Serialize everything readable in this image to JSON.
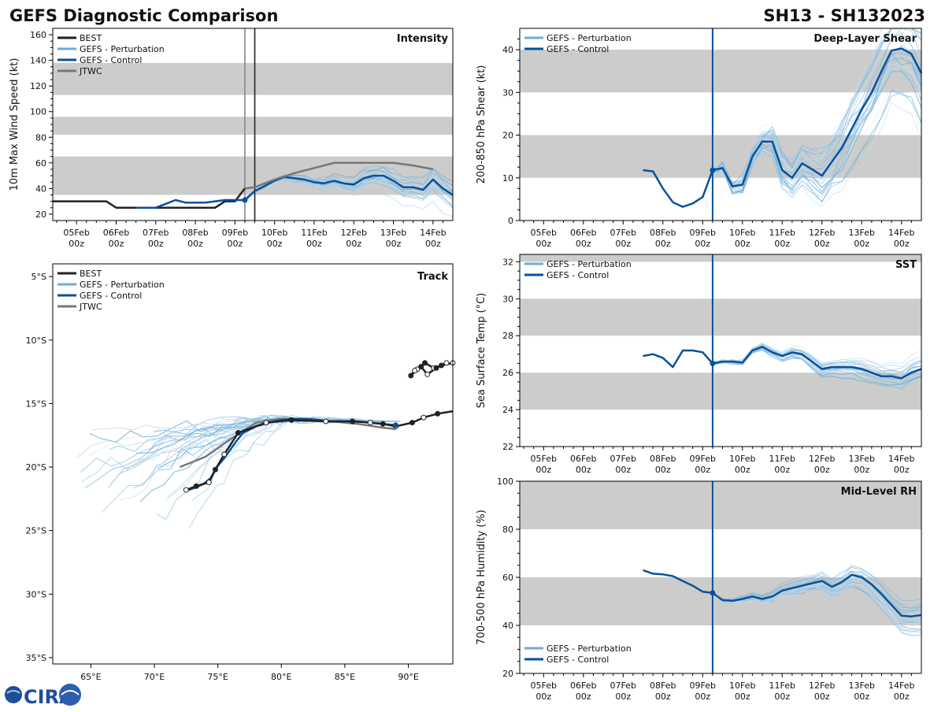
{
  "header": {
    "title": "GEFS Diagnostic Comparison",
    "storm_id": "SH13 - SH132023"
  },
  "colors": {
    "best": "#222222",
    "perturbation": "#6baed6",
    "control": "#08519c",
    "jtwc": "#777777",
    "band": "#cccccc"
  },
  "time_axis": {
    "labels": [
      "05Feb",
      "06Feb",
      "07Feb",
      "08Feb",
      "09Feb",
      "10Feb",
      "11Feb",
      "12Feb",
      "13Feb",
      "14Feb"
    ],
    "sub": "00z"
  },
  "chart_data": [
    {
      "id": "intensity",
      "type": "line",
      "title": "Intensity",
      "ylabel": "10m Max Wind Speed (kt)",
      "ylim": [
        15,
        165
      ],
      "yticks": [
        20,
        40,
        60,
        80,
        100,
        120,
        140,
        160
      ],
      "xlim": [
        -0.6,
        9.5
      ],
      "bands": [
        [
          35,
          65
        ],
        [
          82,
          96
        ],
        [
          113,
          138
        ]
      ],
      "vlines": [
        {
          "x": 4.25,
          "color": "#888888"
        },
        {
          "x": 4.5,
          "color": "#222222"
        }
      ],
      "legend": [
        "BEST",
        "GEFS - Perturbation",
        "GEFS - Control",
        "JTWC"
      ],
      "series": [
        {
          "name": "BEST",
          "x": [
            -0.6,
            0,
            0.25,
            0.5,
            0.75,
            1,
            1.25,
            1.5,
            1.75,
            2,
            2.25,
            2.5,
            2.75,
            3,
            3.25,
            3.5,
            3.75,
            4,
            4.25
          ],
          "values": [
            30,
            30,
            30,
            30,
            30,
            25,
            25,
            25,
            25,
            25,
            25,
            25,
            25,
            25,
            25,
            25,
            30,
            30,
            40
          ]
        },
        {
          "name": "GEFS - Control",
          "x": [
            1.5,
            1.75,
            2,
            2.25,
            2.5,
            2.75,
            3,
            3.25,
            3.5,
            3.75,
            4,
            4.25,
            4.5,
            4.75,
            5,
            5.25,
            5.5,
            5.75,
            6,
            6.25,
            6.5,
            6.75,
            7,
            7.25,
            7.5,
            7.75,
            8,
            8.25,
            8.5,
            8.75,
            9,
            9.25,
            9.5
          ],
          "values": [
            25,
            25,
            25,
            28,
            31,
            29,
            29,
            29,
            30,
            31,
            31,
            31,
            38,
            42,
            46,
            49,
            48,
            47,
            45,
            44,
            46,
            44,
            43,
            48,
            50,
            50,
            46,
            41,
            41,
            39,
            47,
            40,
            35
          ]
        },
        {
          "name": "JTWC",
          "x": [
            4.25,
            4.5,
            5,
            5.5,
            6,
            6.5,
            7,
            7.5,
            8,
            8.5,
            9
          ],
          "values": [
            40,
            41,
            47,
            52,
            56,
            60,
            60,
            60,
            60,
            58,
            55
          ]
        }
      ]
    },
    {
      "id": "shear",
      "type": "line",
      "title": "Deep-Layer Shear",
      "ylabel": "200-850 hPa Shear (kt)",
      "ylim": [
        0,
        45
      ],
      "yticks": [
        0,
        10,
        20,
        30,
        40
      ],
      "xlim": [
        -0.6,
        9.5
      ],
      "bands": [
        [
          10,
          20
        ],
        [
          30,
          40
        ]
      ],
      "vlines": [
        {
          "x": 4.25,
          "color": "#08519c"
        }
      ],
      "legend": [
        "GEFS - Perturbation",
        "GEFS - Control"
      ],
      "series": [
        {
          "name": "GEFS - Control",
          "x": [
            2.5,
            2.75,
            3,
            3.25,
            3.5,
            3.75,
            4,
            4.25,
            4.5,
            4.75,
            5,
            5.25,
            5.5,
            5.75,
            6,
            6.25,
            6.5,
            6.75,
            7,
            7.25,
            7.5,
            7.75,
            8,
            8.25,
            8.5,
            8.75,
            9,
            9.25,
            9.5
          ],
          "values": [
            11.8,
            11.5,
            7.5,
            4.3,
            3.2,
            4,
            5.5,
            11.8,
            12.3,
            8,
            8.4,
            15,
            18.5,
            18.5,
            11.8,
            10,
            13.4,
            12,
            10.5,
            13.8,
            17,
            21.5,
            26,
            30,
            35,
            39.8,
            40.3,
            39,
            34.5
          ]
        }
      ]
    },
    {
      "id": "track",
      "type": "line",
      "title": "Track",
      "xlim": [
        62,
        93.5
      ],
      "ylim": [
        -35.5,
        -4
      ],
      "xticks": [
        65,
        70,
        75,
        80,
        85,
        90
      ],
      "xtick_labels": [
        "65°E",
        "70°E",
        "75°E",
        "80°E",
        "85°E",
        "90°E"
      ],
      "yticks": [
        -5,
        -10,
        -15,
        -20,
        -25,
        -30,
        -35
      ],
      "ytick_labels": [
        "5°S",
        "10°S",
        "15°S",
        "20°S",
        "25°S",
        "30°S",
        "35°S"
      ],
      "legend": [
        "BEST",
        "GEFS - Perturbation",
        "GEFS - Control",
        "JTWC"
      ],
      "series": [
        {
          "name": "BEST",
          "lon": [
            93.5,
            92.3,
            91.2,
            90.3,
            89,
            88,
            87,
            85.6,
            83.5,
            80.8,
            78.8,
            76.6,
            75.5,
            74.8,
            74.3,
            73.3,
            72.5
          ],
          "lat": [
            -15.6,
            -15.8,
            -16.1,
            -16.5,
            -16.8,
            -16.6,
            -16.5,
            -16.4,
            -16.4,
            -16.3,
            -16.5,
            -17.3,
            -19,
            -20.2,
            -21.2,
            -21.5,
            -21.8
          ]
        },
        {
          "name": "BEST-loop",
          "lon": [
            93.5,
            92.6,
            92,
            91.3,
            90.7,
            90.2,
            90.5,
            91,
            91.5,
            92.2,
            93
          ],
          "lat": [
            -11.8,
            -12,
            -12.2,
            -11.8,
            -12.3,
            -12.8,
            -12.4,
            -12.1,
            -12.7,
            -12.2,
            -11.8
          ]
        },
        {
          "name": "GEFS - Control",
          "lon": [
            89,
            88,
            87,
            86,
            85,
            84,
            83,
            82,
            81,
            80,
            79,
            78,
            77,
            76.5,
            76,
            75.5,
            75,
            74.7,
            74.4,
            73.9,
            73.3,
            72.7
          ],
          "lat": [
            -16.7,
            -16.6,
            -16.5,
            -16.4,
            -16.4,
            -16.4,
            -16.3,
            -16.2,
            -16.2,
            -16.3,
            -16.5,
            -16.8,
            -17.3,
            -17.9,
            -18.6,
            -19.3,
            -19.9,
            -20.4,
            -20.9,
            -21.3,
            -21.6,
            -21.8
          ]
        },
        {
          "name": "JTWC",
          "lon": [
            89,
            88,
            86,
            84,
            82,
            80,
            78,
            76,
            74,
            72
          ],
          "lat": [
            -17,
            -16.9,
            -16.6,
            -16.4,
            -16.2,
            -16.2,
            -16.5,
            -17.8,
            -19.2,
            -20
          ]
        }
      ]
    },
    {
      "id": "sst",
      "type": "line",
      "title": "SST",
      "ylabel": "Sea Surface Temp (°C)",
      "ylim": [
        22,
        32.4
      ],
      "yticks": [
        22,
        24,
        26,
        28,
        30,
        32
      ],
      "xlim": [
        -0.6,
        9.5
      ],
      "bands": [
        [
          24,
          26
        ],
        [
          28,
          30
        ],
        [
          32,
          34
        ]
      ],
      "vlines": [
        {
          "x": 4.25,
          "color": "#08519c"
        }
      ],
      "legend": [
        "GEFS - Perturbation",
        "GEFS - Control"
      ],
      "series": [
        {
          "name": "GEFS - Control",
          "x": [
            2.5,
            2.75,
            3,
            3.25,
            3.5,
            3.75,
            4,
            4.25,
            4.5,
            4.75,
            5,
            5.25,
            5.5,
            5.75,
            6,
            6.25,
            6.5,
            6.75,
            7,
            7.25,
            7.5,
            7.75,
            8,
            8.25,
            8.5,
            8.75,
            9,
            9.25,
            9.5
          ],
          "values": [
            26.9,
            27,
            26.8,
            26.3,
            27.2,
            27.2,
            27.1,
            26.5,
            26.6,
            26.6,
            26.55,
            27.2,
            27.4,
            27.1,
            26.9,
            27.1,
            27,
            26.6,
            26.2,
            26.3,
            26.3,
            26.3,
            26.2,
            26,
            25.8,
            25.8,
            25.7,
            26,
            26.2
          ]
        }
      ]
    },
    {
      "id": "rh",
      "type": "line",
      "title": "Mid-Level RH",
      "ylabel": "700-500 hPa Humidity (%)",
      "ylim": [
        20,
        100
      ],
      "yticks": [
        20,
        40,
        60,
        80,
        100
      ],
      "xlim": [
        -0.6,
        9.5
      ],
      "bands": [
        [
          40,
          60
        ],
        [
          80,
          100
        ]
      ],
      "vlines": [
        {
          "x": 4.25,
          "color": "#08519c"
        }
      ],
      "legend": [
        "GEFS - Perturbation",
        "GEFS - Control"
      ],
      "series": [
        {
          "name": "GEFS - Control",
          "x": [
            2.5,
            2.75,
            3,
            3.25,
            3.5,
            3.75,
            4,
            4.25,
            4.5,
            4.75,
            5,
            5.25,
            5.5,
            5.75,
            6,
            6.25,
            6.5,
            6.75,
            7,
            7.25,
            7.5,
            7.75,
            8,
            8.25,
            8.5,
            8.75,
            9,
            9.25,
            9.5
          ],
          "values": [
            63,
            61.5,
            61.2,
            60.5,
            58.5,
            56.5,
            54,
            53.5,
            50.5,
            50.2,
            51,
            52,
            51,
            52,
            54.5,
            55.5,
            56.5,
            57.5,
            58.5,
            56,
            58,
            61,
            60,
            57,
            53,
            48.5,
            44,
            43.7,
            44.3
          ]
        }
      ]
    }
  ],
  "footer": {
    "logo": "CIRA"
  }
}
